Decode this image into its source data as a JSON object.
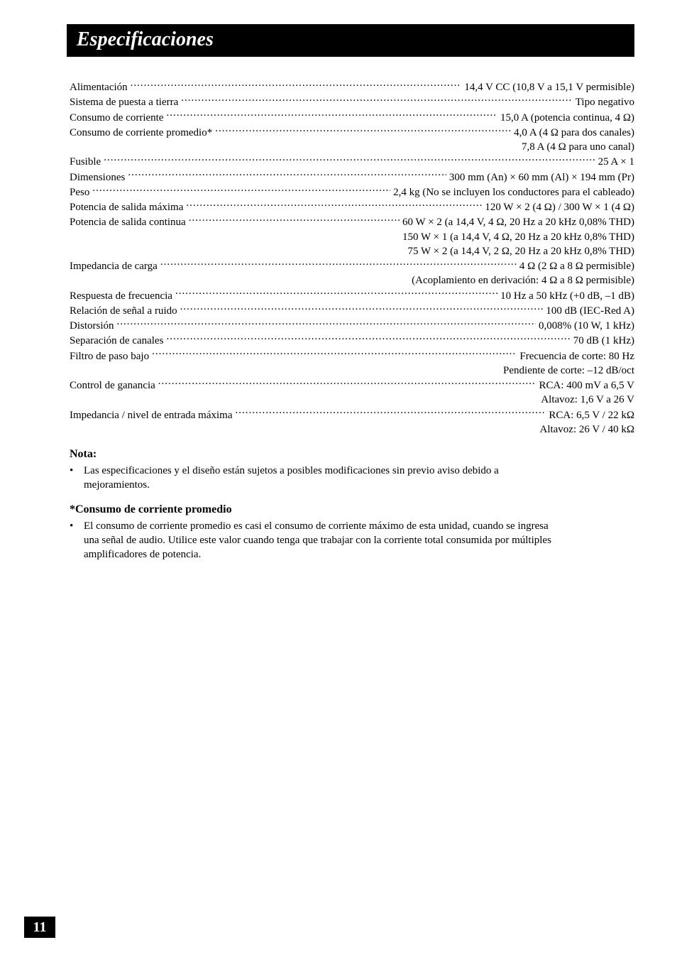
{
  "page": {
    "title": "Especificaciones",
    "page_number": "11",
    "colors": {
      "bg": "#ffffff",
      "text": "#000000",
      "bar_bg": "#000000",
      "bar_text": "#ffffff"
    },
    "font_family": "Times New Roman",
    "spec_fontsize": 15,
    "heading_fontsize": 16
  },
  "specs": [
    {
      "label": "Alimentación",
      "value": "14,4 V CC (10,8 V a 15,1 V permisible)"
    },
    {
      "label": "Sistema de puesta a tierra",
      "value": "Tipo negativo"
    },
    {
      "label": "Consumo de corriente",
      "value": "15,0 A (potencia continua, 4 Ω)"
    },
    {
      "label": "Consumo de corriente promedio*",
      "value": "4,0 A (4 Ω para dos canales)",
      "cont": [
        "7,8 A (4 Ω para uno canal)"
      ]
    },
    {
      "label": "Fusible",
      "value": "25 A × 1"
    },
    {
      "label": "Dimensiones",
      "value": "300 mm (An) × 60 mm (Al) × 194 mm (Pr)"
    },
    {
      "label": "Peso",
      "value": "2,4 kg (No se incluyen los conductores para el cableado)"
    },
    {
      "label": "Potencia de salida máxima",
      "value": "120 W × 2 (4 Ω) / 300 W × 1 (4 Ω)"
    },
    {
      "label": "Potencia de salida continua",
      "value": "60 W × 2 (a 14,4 V, 4 Ω, 20 Hz a 20 kHz 0,08% THD)",
      "cont": [
        "150 W × 1 (a 14,4 V, 4 Ω, 20 Hz a 20 kHz 0,8% THD)",
        "75 W × 2 (a 14,4 V, 2 Ω, 20 Hz a 20 kHz 0,8% THD)"
      ]
    },
    {
      "label": "Impedancia de carga",
      "value": "4 Ω (2 Ω a 8 Ω permisible)",
      "cont": [
        "(Acoplamiento en derivación: 4 Ω a 8 Ω permisible)"
      ]
    },
    {
      "label": "Respuesta de frecuencia",
      "value": "10 Hz a 50 kHz (+0 dB, –1 dB)"
    },
    {
      "label": "Relación de señal a ruido",
      "value": "100 dB (IEC-Red A)"
    },
    {
      "label": "Distorsión",
      "value": "0,008% (10 W, 1 kHz)"
    },
    {
      "label": "Separación de canales",
      "value": "70 dB (1 kHz)"
    },
    {
      "label": "Filtro de paso bajo",
      "value": "Frecuencia de corte: 80 Hz",
      "cont": [
        "Pendiente de corte: –12 dB/oct"
      ]
    },
    {
      "label": "Control de ganancia",
      "value": "RCA: 400 mV a 6,5 V",
      "cont": [
        "Altavoz: 1,6 V a 26 V"
      ]
    },
    {
      "label": "Impedancia / nivel de entrada máxima",
      "value": "RCA: 6,5 V / 22 kΩ",
      "cont": [
        "Altavoz: 26 V / 40 kΩ"
      ]
    }
  ],
  "notes": {
    "nota_heading": "Nota:",
    "nota_bullet": "Las especificaciones y el diseño están sujetos a posibles modificaciones sin previo aviso debido a mejoramientos.",
    "consumo_heading": "*Consumo de corriente promedio",
    "consumo_bullet": "El consumo de corriente promedio es casi el consumo de corriente máximo de esta unidad, cuando se ingresa una señal de audio. Utilice este valor cuando tenga que trabajar con la corriente total consumida por múltiples amplificadores de potencia."
  }
}
